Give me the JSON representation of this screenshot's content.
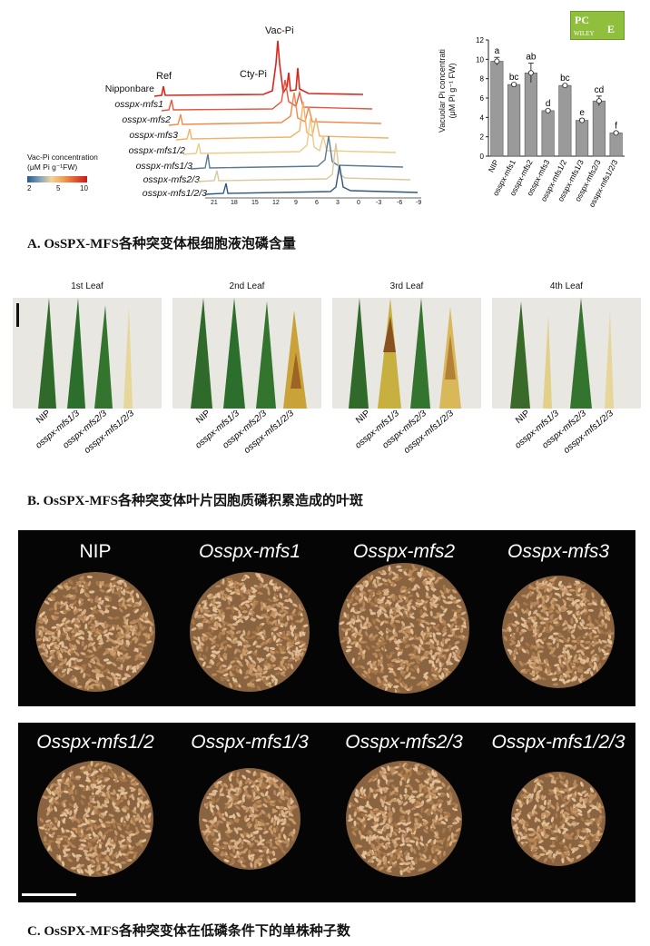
{
  "logo": {
    "text_top": "PC",
    "text_bottom": "E",
    "publisher": "WILEY"
  },
  "panel_a": {
    "peaks": {
      "vac": "Vac-Pi",
      "cty": "Cty-Pi",
      "ref": "Ref"
    },
    "spectra_labels": [
      "Nipponbare",
      "osspx-mfs1",
      "osspx-mfs2",
      "osspx-mfs3",
      "osspx-mfs1/2",
      "osspx-mfs1/3",
      "osspx-mfs2/3",
      "osspx-mfs1/2/3"
    ],
    "ppm_ticks": [
      "21",
      "18",
      "15",
      "12",
      "9",
      "6",
      "3",
      "0",
      "-3",
      "-6",
      "-9"
    ],
    "colorbar": {
      "title_line1": "Vac-Pi concentration",
      "title_line2": "(μM Pi g⁻¹FW)",
      "ticks": [
        "2",
        "5",
        "10"
      ]
    },
    "caption_prefix": "A. OsSPX-MFS",
    "caption_text": "各种突变体根细胞液泡磷含量"
  },
  "chart_data": {
    "type": "bar",
    "categories": [
      "NIP",
      "osspx-mfs1",
      "osspx-mfs2",
      "osspx-mfs3",
      "osspx-mfs1/2",
      "osspx-mfs1/3",
      "osspx-mfs2/3",
      "osspx-mfs1/2/3"
    ],
    "values": [
      9.8,
      7.4,
      8.6,
      4.7,
      7.3,
      3.7,
      5.7,
      2.4
    ],
    "errors": [
      0.4,
      0.1,
      1.0,
      0.1,
      0.1,
      0.15,
      0.5,
      0.1
    ],
    "letters": [
      "a",
      "bc",
      "ab",
      "d",
      "bc",
      "e",
      "cd",
      "f"
    ],
    "ylabel_line1": "Vacuolar Pi concentrati",
    "ylabel_line2": "(μM Pi g⁻¹ FW)",
    "yticks": [
      "0",
      "2",
      "4",
      "6",
      "8",
      "10",
      "12"
    ],
    "ylim": [
      0,
      12
    ],
    "bar_color": "#9a9a9a"
  },
  "panel_b": {
    "titles": [
      "1st Leaf",
      "2nd Leaf",
      "3rd Leaf",
      "4th Leaf"
    ],
    "genotypes": [
      "NIP",
      "osspx-mfs1/3",
      "osspx-mfs2/3",
      "osspx-mfs1/2/3"
    ],
    "caption_prefix": "B. OsSPX-MFS",
    "caption_text": "各种突变体叶片因胞质磷积累造成的叶斑"
  },
  "panel_c": {
    "row1": [
      "NIP",
      "Osspx-mfs1",
      "Osspx-mfs2",
      "Osspx-mfs3"
    ],
    "row2": [
      "Osspx-mfs1/2",
      "Osspx-mfs1/3",
      "Osspx-mfs2/3",
      "Osspx-mfs1/2/3"
    ],
    "caption_prefix": "C. OsSPX-MFS",
    "caption_text": "各种突变体在低磷条件下的单株种子数"
  }
}
